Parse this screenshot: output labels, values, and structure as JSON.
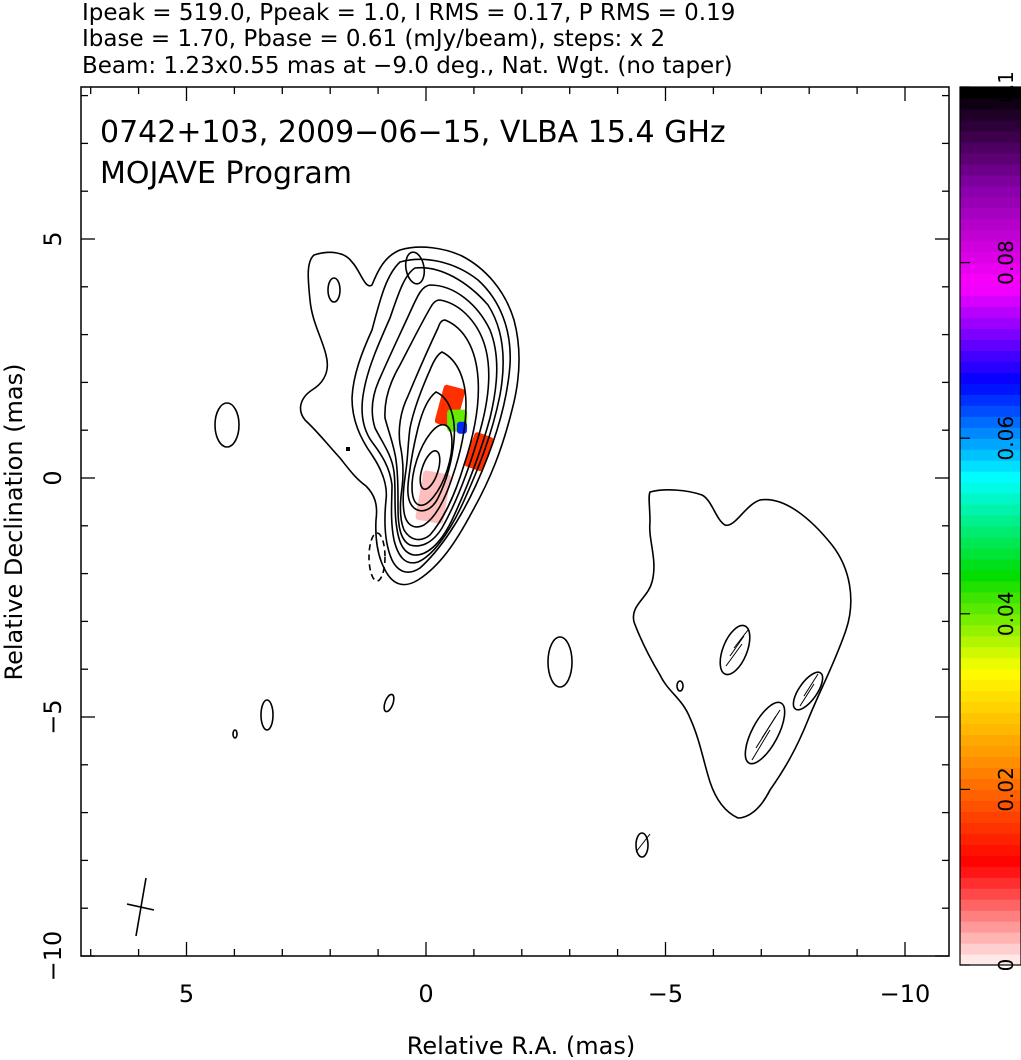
{
  "header": {
    "line1": "Ipeak = 519.0, Ppeak = 1.0, I RMS = 0.17, P RMS = 0.19",
    "line2": "Ibase = 1.70, Pbase = 0.61 (mJy/beam), steps: x 2",
    "line3": "Beam: 1.23x0.55 mas at −9.0 deg., Nat. Wgt. (no taper)"
  },
  "plot": {
    "title_line1": "0742+103, 2009−06−15, VLBA 15.4 GHz",
    "title_line2": "MOJAVE Program"
  },
  "chart_data": {
    "type": "contour",
    "xlabel": "Relative R.A. (mas)",
    "ylabel": "Relative Declination (mas)",
    "xlim": [
      7.0,
      -11.1
    ],
    "ylim": [
      -10.2,
      8.2
    ],
    "x_ticks": [
      5,
      0,
      -5,
      -10
    ],
    "x_tick_labels": [
      "5",
      "0",
      "−5",
      "−10"
    ],
    "y_ticks": [
      5,
      0,
      -5,
      -10
    ],
    "y_tick_labels": [
      "5",
      "0",
      "−5",
      "−10"
    ],
    "contour_base_mJy_per_beam": 1.7,
    "contour_step_factor": 2,
    "peak_intensity_mJy_per_beam": 519.0,
    "colorbar": {
      "range": [
        0,
        0.1
      ],
      "ticks": [
        0,
        0.02,
        0.04,
        0.06,
        0.08,
        0.1
      ],
      "tick_labels": [
        "0",
        "0.02",
        "0.04",
        "0.06",
        "0.08",
        "0.1"
      ],
      "colors": [
        "#ffe8e8",
        "#ff0000",
        "#ff8800",
        "#ffff00",
        "#00dd00",
        "#00ffff",
        "#0000ff",
        "#ff00ff",
        "#8800aa",
        "#000000"
      ]
    },
    "beam": {
      "major_mas": 1.23,
      "minor_mas": 0.55,
      "pa_deg": -9.0,
      "center": [
        6.0,
        -9.0
      ]
    },
    "polarization_patches": [
      {
        "x": -0.5,
        "y": 1.5,
        "level": 0.015
      },
      {
        "x": -0.65,
        "y": 1.2,
        "level": 0.04
      },
      {
        "x": -0.75,
        "y": 1.05,
        "level": 0.065
      },
      {
        "x": -1.1,
        "y": 0.55,
        "level": 0.015
      },
      {
        "x": -0.15,
        "y": -0.4,
        "level": 0.002
      }
    ]
  }
}
